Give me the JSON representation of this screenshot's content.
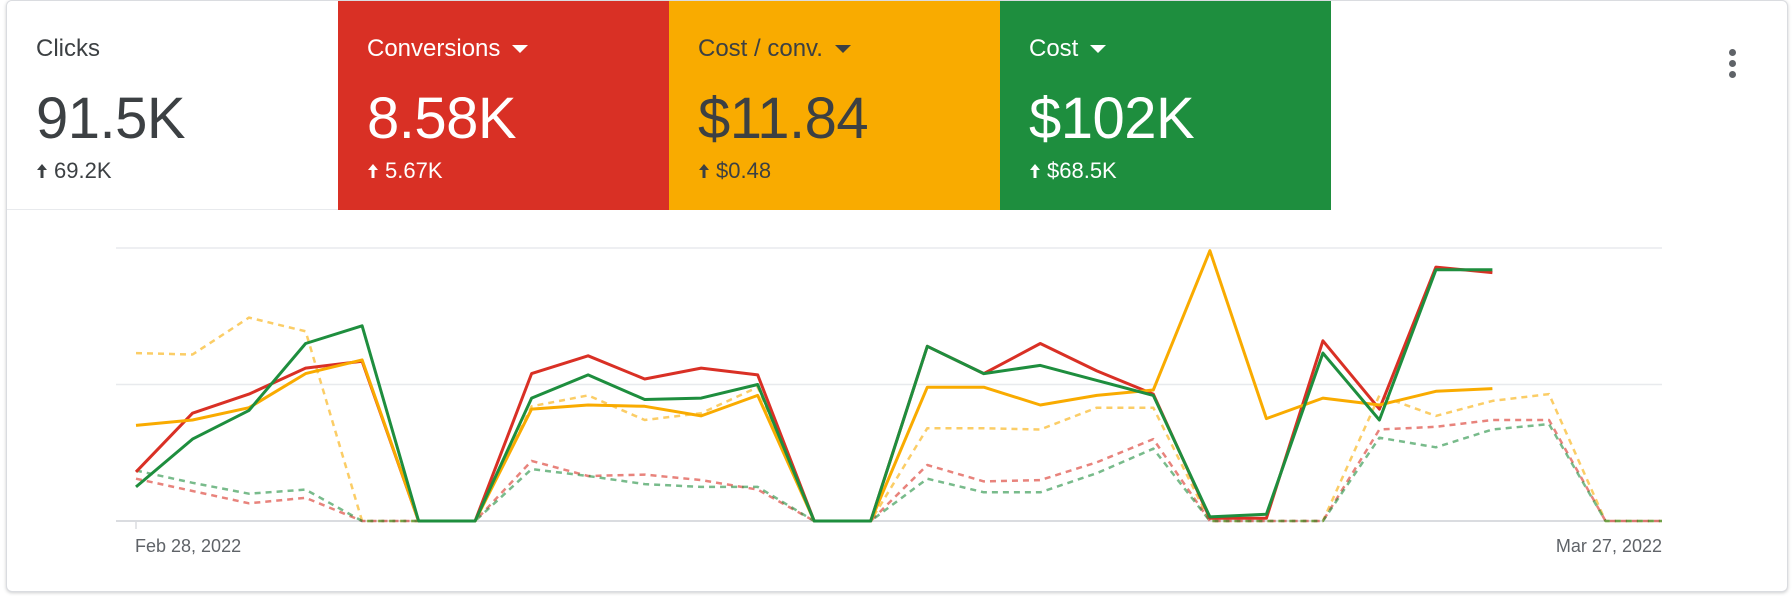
{
  "tiles": [
    {
      "label": "Clicks",
      "value": "91.5K",
      "delta": "69.2K",
      "dropdown": false,
      "bg": "#ffffff"
    },
    {
      "label": "Conversions",
      "value": "8.58K",
      "delta": "5.67K",
      "dropdown": true,
      "bg": "#d93025"
    },
    {
      "label": "Cost / conv.",
      "value": "$11.84",
      "delta": "$0.48",
      "dropdown": true,
      "bg": "#f9ab00"
    },
    {
      "label": "Cost",
      "value": "$102K",
      "delta": "$68.5K",
      "dropdown": true,
      "bg": "#1e8e3e"
    }
  ],
  "more_menu_icon": "more-vert-icon",
  "chart_data": {
    "type": "line",
    "x_start_label": "Feb 28, 2022",
    "x_end_label": "Mar 27, 2022",
    "x_count": 28,
    "ylim": [
      0,
      2
    ],
    "grid": true,
    "series": [
      {
        "color": "#d93025",
        "dashed": false,
        "values": [
          0.36,
          0.79,
          0.93,
          1.12,
          1.17,
          0,
          0,
          1.08,
          1.21,
          1.04,
          1.12,
          1.07,
          0,
          0,
          1.28,
          1.08,
          1.3,
          1.1,
          0.93,
          0.02,
          0.02,
          1.32,
          0.82,
          1.86,
          1.82
        ]
      },
      {
        "color": "#f9ab00",
        "dashed": false,
        "values": [
          0.7,
          0.74,
          0.83,
          1.08,
          1.18,
          0,
          0,
          0.82,
          0.85,
          0.84,
          0.77,
          0.92,
          0,
          0,
          0.98,
          0.98,
          0.85,
          0.92,
          0.96,
          1.98,
          0.75,
          0.9,
          0.85,
          0.95,
          0.97
        ]
      },
      {
        "color": "#1e8e3e",
        "dashed": false,
        "values": [
          0.25,
          0.6,
          0.81,
          1.3,
          1.43,
          0,
          0,
          0.9,
          1.07,
          0.89,
          0.9,
          1,
          0,
          0,
          1.28,
          1.08,
          1.14,
          1.03,
          0.92,
          0.03,
          0.05,
          1.23,
          0.74,
          1.84,
          1.84
        ]
      },
      {
        "color": "#f9ab00",
        "dashed": true,
        "values": [
          1.23,
          1.22,
          1.49,
          1.39,
          0,
          0,
          0,
          0.84,
          0.92,
          0.74,
          0.79,
          0.98,
          0,
          0,
          0.68,
          0.68,
          0.67,
          0.83,
          0.83,
          0,
          0,
          0,
          0.92,
          0.77,
          0.88,
          0.93,
          0,
          0
        ]
      },
      {
        "color": "#d93025",
        "dashed": true,
        "values": [
          0.31,
          0.22,
          0.13,
          0.17,
          0,
          0,
          0,
          0.44,
          0.33,
          0.34,
          0.3,
          0.23,
          0,
          0,
          0.41,
          0.29,
          0.3,
          0.43,
          0.6,
          0,
          0,
          0,
          0.67,
          0.69,
          0.74,
          0.74,
          0,
          0
        ]
      },
      {
        "color": "#1e8e3e",
        "dashed": true,
        "values": [
          0.37,
          0.28,
          0.2,
          0.23,
          0,
          0,
          0,
          0.38,
          0.33,
          0.27,
          0.25,
          0.25,
          0,
          0,
          0.31,
          0.21,
          0.21,
          0.35,
          0.53,
          0,
          0,
          0,
          0.61,
          0.54,
          0.67,
          0.71,
          0,
          0
        ]
      }
    ]
  }
}
